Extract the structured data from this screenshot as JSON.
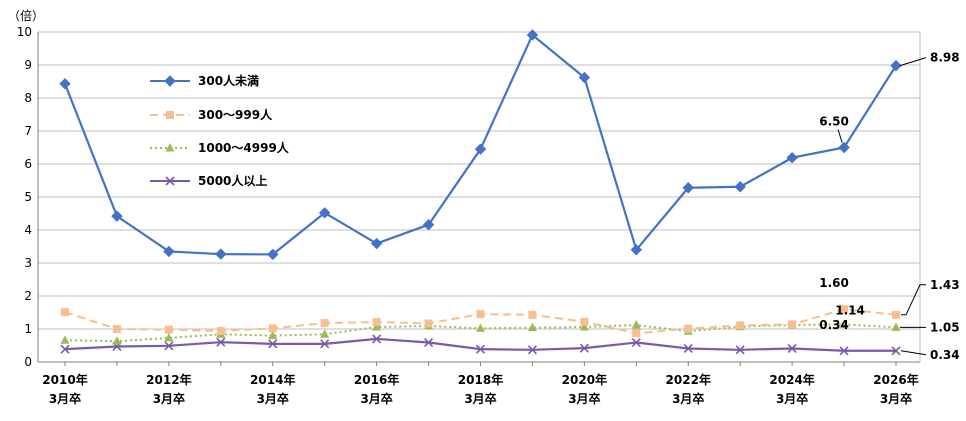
{
  "chart_data": {
    "type": "line",
    "unit_label": "（倍）",
    "ylim": [
      0,
      10
    ],
    "yticks": [
      "0",
      "1",
      "2",
      "3",
      "4",
      "5",
      "6",
      "7",
      "8",
      "9",
      "10"
    ],
    "x": [
      "2010年3月卒",
      "2011年3月卒",
      "2012年3月卒",
      "2013年3月卒",
      "2014年3月卒",
      "2015年3月卒",
      "2016年3月卒",
      "2017年3月卒",
      "2018年3月卒",
      "2019年3月卒",
      "2020年3月卒",
      "2021年3月卒",
      "2022年3月卒",
      "2023年3月卒",
      "2024年3月卒",
      "2025年3月卒",
      "2026年3月卒"
    ],
    "xtick_labels": [
      {
        "index": 0,
        "line1": "2010年",
        "line2": "3月卒"
      },
      {
        "index": 2,
        "line1": "2012年",
        "line2": "3月卒"
      },
      {
        "index": 4,
        "line1": "2014年",
        "line2": "3月卒"
      },
      {
        "index": 6,
        "line1": "2016年",
        "line2": "3月卒"
      },
      {
        "index": 8,
        "line1": "2018年",
        "line2": "3月卒"
      },
      {
        "index": 10,
        "line1": "2020年",
        "line2": "3月卒"
      },
      {
        "index": 12,
        "line1": "2022年",
        "line2": "3月卒"
      },
      {
        "index": 14,
        "line1": "2024年",
        "line2": "3月卒"
      },
      {
        "index": 16,
        "line1": "2026年",
        "line2": "3月卒"
      }
    ],
    "grid": true,
    "legend_position": "top-left",
    "series": [
      {
        "name": "300人未満",
        "color": "#4472C4",
        "marker": "diamond",
        "dash": "solid",
        "values": [
          8.43,
          4.42,
          3.35,
          3.27,
          3.26,
          4.52,
          3.59,
          4.16,
          6.45,
          9.91,
          8.62,
          3.4,
          5.28,
          5.31,
          6.19,
          6.5,
          8.98
        ]
      },
      {
        "name": "300〜999人",
        "color": "#F9BE8F",
        "marker": "square",
        "dash": "dashed",
        "values": [
          1.51,
          1.0,
          0.98,
          0.94,
          1.02,
          1.18,
          1.21,
          1.17,
          1.45,
          1.43,
          1.22,
          0.87,
          1.01,
          1.11,
          1.14,
          1.6,
          1.43
        ]
      },
      {
        "name": "1000〜4999人",
        "color": "#9BBB59",
        "marker": "triangle",
        "dash": "dotted",
        "values": [
          0.66,
          0.63,
          0.73,
          0.84,
          0.8,
          0.84,
          1.06,
          1.09,
          1.02,
          1.04,
          1.06,
          1.12,
          0.93,
          1.07,
          1.12,
          1.14,
          1.05
        ]
      },
      {
        "name": "5000人以上",
        "color": "#7B5AA6",
        "marker": "x",
        "dash": "solid",
        "values": [
          0.39,
          0.47,
          0.49,
          0.6,
          0.55,
          0.55,
          0.7,
          0.59,
          0.39,
          0.37,
          0.42,
          0.59,
          0.41,
          0.37,
          0.41,
          0.34,
          0.34
        ]
      }
    ],
    "annotations": [
      {
        "text": "6.50",
        "series": 0,
        "index": 15,
        "pos": "above"
      },
      {
        "text": "8.98",
        "series": 0,
        "index": 16,
        "pos": "right"
      },
      {
        "text": "1.60",
        "series": 1,
        "index": 15,
        "pos": "above"
      },
      {
        "text": "1.43",
        "series": 1,
        "index": 16,
        "pos": "right-high"
      },
      {
        "text": "1.14",
        "series": 2,
        "index": 15,
        "pos": "above-small"
      },
      {
        "text": "1.05",
        "series": 2,
        "index": 16,
        "pos": "right"
      },
      {
        "text": "0.34",
        "series": 3,
        "index": 15,
        "pos": "above"
      },
      {
        "text": "0.34",
        "series": 3,
        "index": 16,
        "pos": "right-low"
      }
    ]
  }
}
